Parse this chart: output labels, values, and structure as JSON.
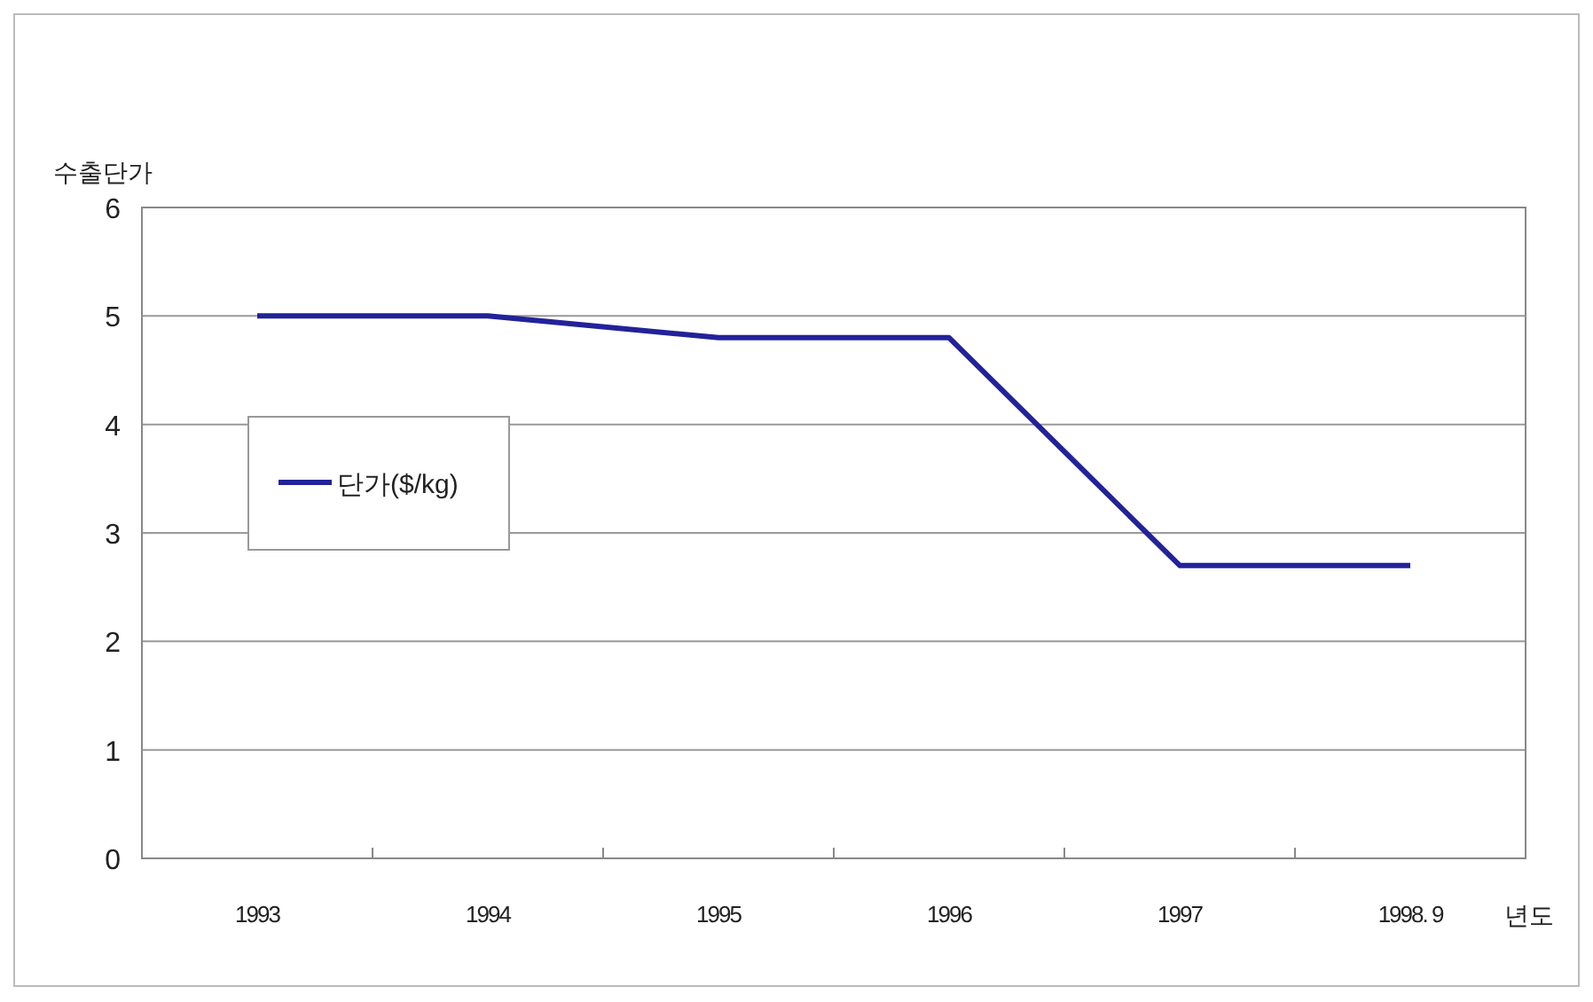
{
  "chart_data": {
    "type": "line",
    "ylabel": "수출단가",
    "xlabel": "년도",
    "categories": [
      "1993",
      "1994",
      "1995",
      "1996",
      "1997",
      "1998. 9"
    ],
    "series": [
      {
        "name": "단가($/kg)",
        "color": "#22229a",
        "values": [
          5,
          5,
          4.8,
          4.8,
          2.7,
          2.7
        ]
      }
    ],
    "ylim": [
      0,
      6
    ],
    "yticks": [
      0,
      1,
      2,
      3,
      4,
      5,
      6
    ],
    "grid": "y",
    "legend": "left",
    "marker": "none",
    "line_style": "solid"
  }
}
